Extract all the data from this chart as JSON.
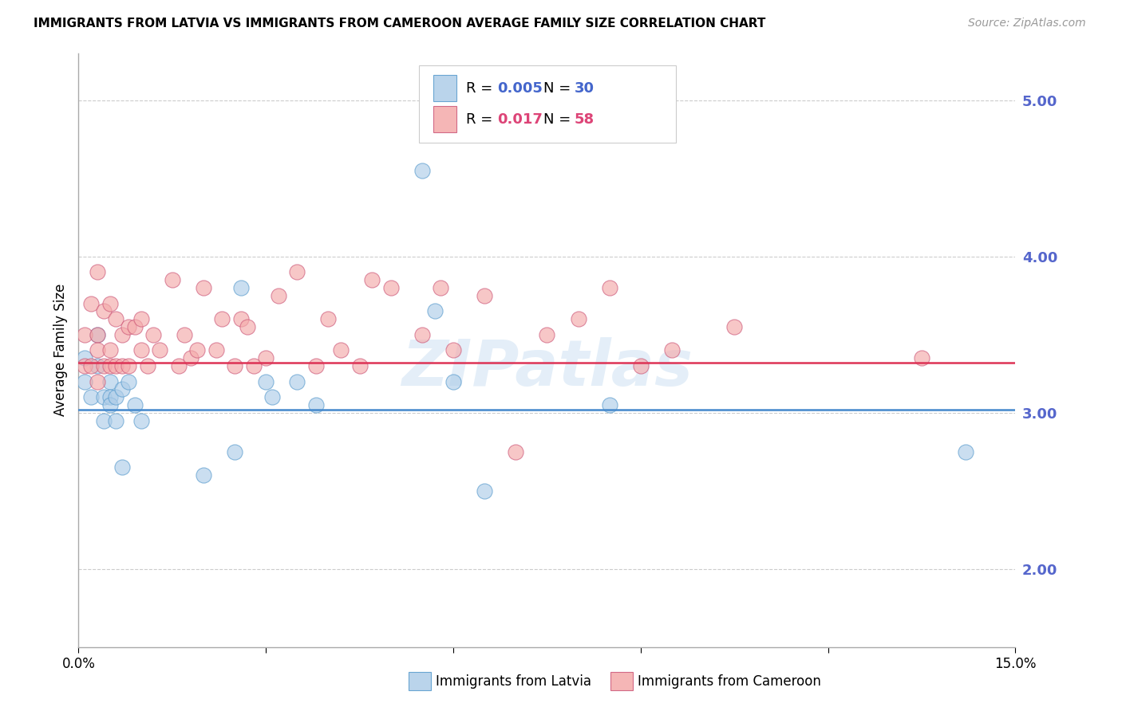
{
  "title": "IMMIGRANTS FROM LATVIA VS IMMIGRANTS FROM CAMEROON AVERAGE FAMILY SIZE CORRELATION CHART",
  "source": "Source: ZipAtlas.com",
  "ylabel": "Average Family Size",
  "watermark": "ZIPatlas",
  "xlim": [
    0.0,
    0.15
  ],
  "ylim": [
    1.5,
    5.3
  ],
  "yticks": [
    2.0,
    3.0,
    4.0,
    5.0
  ],
  "latvia_R": "0.005",
  "latvia_N": "30",
  "cameroon_R": "0.017",
  "cameroon_N": "58",
  "latvia_mean": 3.02,
  "cameroon_mean": 3.32,
  "latvia_fill": "#aecde8",
  "cameroon_fill": "#f4aaaa",
  "latvia_edge": "#5599cc",
  "cameroon_edge": "#cc5577",
  "latvia_line": "#4488cc",
  "cameroon_line": "#dd3355",
  "legend_blue": "#4466cc",
  "legend_pink": "#dd4477",
  "axis_tick_color": "#5566cc",
  "grid_color": "#cccccc",
  "latvia_x": [
    0.001,
    0.001,
    0.002,
    0.003,
    0.003,
    0.004,
    0.004,
    0.005,
    0.005,
    0.005,
    0.006,
    0.006,
    0.007,
    0.007,
    0.008,
    0.009,
    0.01,
    0.02,
    0.025,
    0.026,
    0.03,
    0.031,
    0.035,
    0.038,
    0.055,
    0.057,
    0.06,
    0.065,
    0.085,
    0.142
  ],
  "latvia_y": [
    3.2,
    3.35,
    3.1,
    3.5,
    3.3,
    3.1,
    2.95,
    3.2,
    3.1,
    3.05,
    3.1,
    2.95,
    2.65,
    3.15,
    3.2,
    3.05,
    2.95,
    2.6,
    2.75,
    3.8,
    3.2,
    3.1,
    3.2,
    3.05,
    4.55,
    3.65,
    3.2,
    2.5,
    3.05,
    2.75
  ],
  "cameroon_x": [
    0.001,
    0.001,
    0.002,
    0.002,
    0.003,
    0.003,
    0.003,
    0.003,
    0.004,
    0.004,
    0.005,
    0.005,
    0.005,
    0.006,
    0.006,
    0.007,
    0.007,
    0.008,
    0.008,
    0.009,
    0.01,
    0.01,
    0.011,
    0.012,
    0.013,
    0.015,
    0.016,
    0.017,
    0.018,
    0.019,
    0.02,
    0.022,
    0.023,
    0.025,
    0.026,
    0.027,
    0.028,
    0.03,
    0.032,
    0.035,
    0.038,
    0.04,
    0.042,
    0.045,
    0.047,
    0.05,
    0.055,
    0.058,
    0.06,
    0.065,
    0.07,
    0.075,
    0.08,
    0.085,
    0.09,
    0.095,
    0.105,
    0.135
  ],
  "cameroon_y": [
    3.5,
    3.3,
    3.7,
    3.3,
    3.9,
    3.5,
    3.4,
    3.2,
    3.65,
    3.3,
    3.7,
    3.4,
    3.3,
    3.6,
    3.3,
    3.5,
    3.3,
    3.55,
    3.3,
    3.55,
    3.6,
    3.4,
    3.3,
    3.5,
    3.4,
    3.85,
    3.3,
    3.5,
    3.35,
    3.4,
    3.8,
    3.4,
    3.6,
    3.3,
    3.6,
    3.55,
    3.3,
    3.35,
    3.75,
    3.9,
    3.3,
    3.6,
    3.4,
    3.3,
    3.85,
    3.8,
    3.5,
    3.8,
    3.4,
    3.75,
    2.75,
    3.5,
    3.6,
    3.8,
    3.3,
    3.4,
    3.55,
    3.35
  ]
}
